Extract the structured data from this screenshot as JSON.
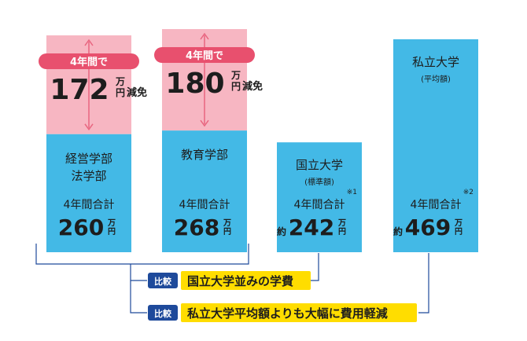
{
  "chart_data": {
    "type": "bar",
    "stacked": true,
    "unit": "万円",
    "bars": [
      {
        "label_lines": [
          "経営学部",
          "法学部"
        ],
        "sub_label": "",
        "total_label": "4年間合計",
        "prefix": "",
        "value": 260,
        "note": "",
        "reduction": {
          "badge": "4年間で",
          "value": 172,
          "suffix": "減免"
        }
      },
      {
        "label_lines": [
          "教育学部"
        ],
        "sub_label": "",
        "total_label": "4年間合計",
        "prefix": "",
        "value": 268,
        "note": "",
        "reduction": {
          "badge": "4年間で",
          "value": 180,
          "suffix": "減免"
        }
      },
      {
        "label_lines": [
          "国立大学"
        ],
        "sub_label": "(標準額)",
        "total_label": "4年間合計",
        "prefix": "約",
        "value": 242,
        "note": "※1",
        "reduction": null
      },
      {
        "label_lines": [
          "私立大学"
        ],
        "sub_label": "(平均額)",
        "total_label": "4年間合計",
        "prefix": "約",
        "value": 469,
        "note": "※2",
        "reduction": null
      }
    ],
    "comparisons": [
      {
        "tag": "比較",
        "text": "国立大学並みの学費"
      },
      {
        "tag": "比較",
        "text": "私立大学平均額よりも大幅に費用軽減"
      }
    ],
    "colors": {
      "bar": "#43b9e6",
      "reduction": "#f7b6c2",
      "arrow": "#e8657f",
      "badge": "#e8506e",
      "tag": "#1e4a9b",
      "highlight": "#ffdd00",
      "bracket": "#1e4a9b"
    }
  }
}
